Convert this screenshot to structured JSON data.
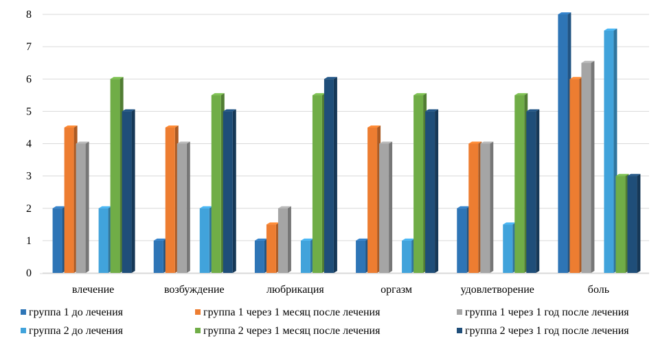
{
  "chart_data": {
    "type": "bar",
    "style": "3d-columns",
    "categories": [
      "влечение",
      "возбуждение",
      "любрикация",
      "оргазм",
      "удовлетворение",
      "боль"
    ],
    "ylim": [
      0,
      8
    ],
    "yticks": [
      0,
      1,
      2,
      3,
      4,
      5,
      6,
      7,
      8
    ],
    "grid": true,
    "legend_position": "bottom",
    "series": [
      {
        "name": "группа 1 до лечения",
        "color": "#2E75B6",
        "values": [
          2,
          1,
          1,
          1,
          2,
          8
        ]
      },
      {
        "name": "группа 1 через 1 месяц после лечения",
        "color": "#ED7D31",
        "values": [
          4.5,
          4.5,
          1.5,
          4.5,
          4,
          6
        ]
      },
      {
        "name": "группа 1 через 1 год после лечения",
        "color": "#A5A5A5",
        "values": [
          4,
          4,
          2,
          4,
          4,
          6.5
        ]
      },
      {
        "name": "группа 2 до лечения",
        "color": "#41A3DB",
        "values": [
          2,
          2,
          1,
          1,
          1.5,
          7.5
        ]
      },
      {
        "name": "группа 2 через 1 месяц после лечения",
        "color": "#70AD47",
        "values": [
          6,
          5.5,
          5.5,
          5.5,
          5.5,
          3
        ]
      },
      {
        "name": "группа 2 через 1 год после лечения",
        "color": "#1F4E79",
        "values": [
          5,
          5,
          6,
          5,
          5,
          3
        ]
      }
    ]
  }
}
